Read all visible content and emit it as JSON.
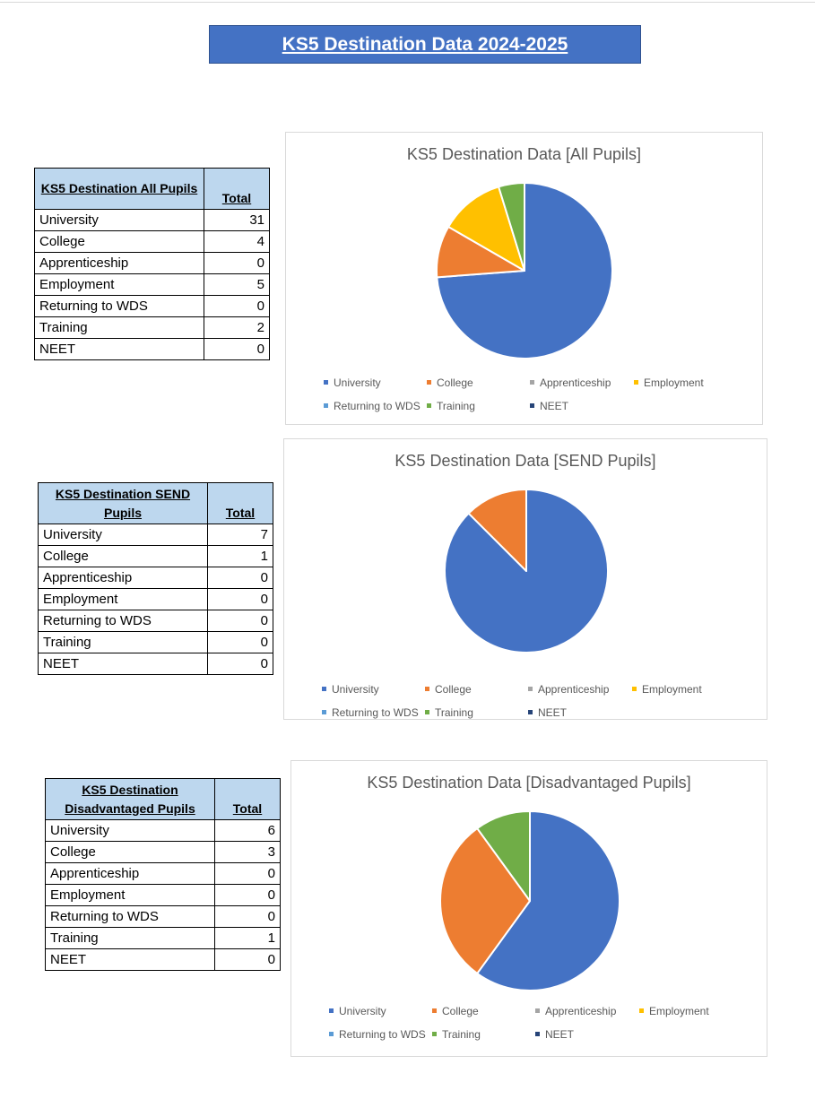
{
  "page_title": "KS5 Destination Data 2024-2025",
  "colors": {
    "University": "#4472c4",
    "College": "#ed7d31",
    "Apprenticeship": "#a5a5a5",
    "Employment": "#ffc000",
    "Returning to WDS": "#5b9bd5",
    "Training": "#70ad47",
    "NEET": "#264478"
  },
  "tables": [
    {
      "header_label": "KS5 Destination All Pupils",
      "total_label": "Total",
      "rows": [
        {
          "label": "University",
          "value": "31"
        },
        {
          "label": "College",
          "value": "4"
        },
        {
          "label": "Apprenticeship",
          "value": "0"
        },
        {
          "label": "Employment",
          "value": "5"
        },
        {
          "label": "Returning to WDS",
          "value": "0"
        },
        {
          "label": "Training",
          "value": "2"
        },
        {
          "label": "NEET",
          "value": "0"
        }
      ]
    },
    {
      "header_label": "KS5 Destination SEND Pupils",
      "total_label": "Total",
      "rows": [
        {
          "label": "University",
          "value": "7"
        },
        {
          "label": "College",
          "value": "1"
        },
        {
          "label": "Apprenticeship",
          "value": "0"
        },
        {
          "label": "Employment",
          "value": "0"
        },
        {
          "label": "Returning to WDS",
          "value": "0"
        },
        {
          "label": "Training",
          "value": "0"
        },
        {
          "label": "NEET",
          "value": "0"
        }
      ]
    },
    {
      "header_label": "KS5 Destination Disadvantaged Pupils",
      "total_label": "Total",
      "rows": [
        {
          "label": "University",
          "value": "6"
        },
        {
          "label": "College",
          "value": "3"
        },
        {
          "label": "Apprenticeship",
          "value": "0"
        },
        {
          "label": "Employment",
          "value": "0"
        },
        {
          "label": "Returning to WDS",
          "value": "0"
        },
        {
          "label": "Training",
          "value": "1"
        },
        {
          "label": "NEET",
          "value": "0"
        }
      ]
    }
  ],
  "chart_data": [
    {
      "type": "pie",
      "title": "KS5 Destination Data [All Pupils]",
      "categories": [
        "University",
        "College",
        "Apprenticeship",
        "Employment",
        "Returning to WDS",
        "Training",
        "NEET"
      ],
      "values": [
        31,
        4,
        0,
        5,
        0,
        2,
        0
      ],
      "legend": "bottom"
    },
    {
      "type": "pie",
      "title": "KS5 Destination Data [SEND Pupils]",
      "categories": [
        "University",
        "College",
        "Apprenticeship",
        "Employment",
        "Returning to WDS",
        "Training",
        "NEET"
      ],
      "values": [
        7,
        1,
        0,
        0,
        0,
        0,
        0
      ],
      "legend": "bottom"
    },
    {
      "type": "pie",
      "title": "KS5 Destination Data [Disadvantaged Pupils]",
      "categories": [
        "University",
        "College",
        "Apprenticeship",
        "Employment",
        "Returning to WDS",
        "Training",
        "NEET"
      ],
      "values": [
        6,
        3,
        0,
        0,
        0,
        1,
        0
      ],
      "legend": "bottom"
    }
  ]
}
